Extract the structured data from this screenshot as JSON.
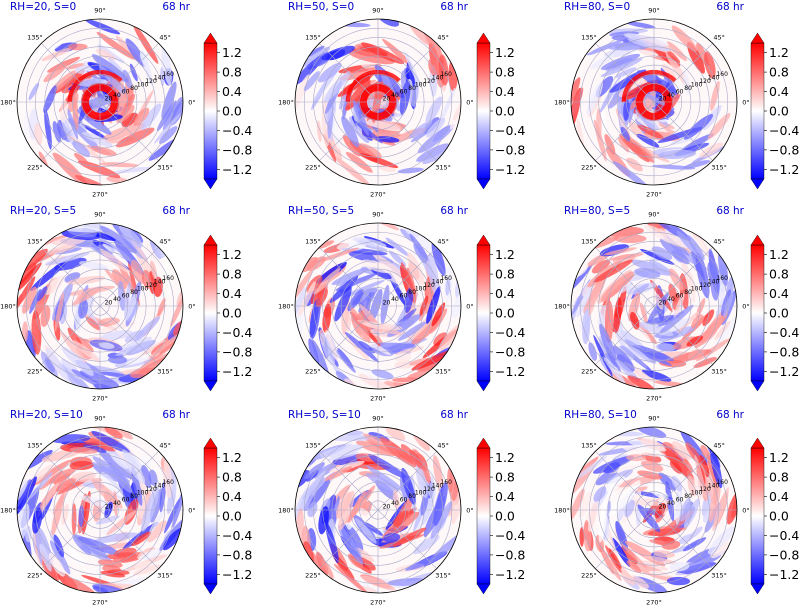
{
  "colors": {
    "negative": "#0000ff",
    "zero": "#ffffff",
    "positive": "#ff0000",
    "title": "#0000cc",
    "grid": "#a9a9c9",
    "frame": "#000000"
  },
  "colormap": "bwr",
  "colorbar_ticks": [
    "1.2",
    "0.8",
    "0.4",
    "0.0",
    "−0.4",
    "−0.8",
    "−1.2"
  ],
  "angle_labels": [
    "90°",
    "45°",
    "0°",
    "315°",
    "270°",
    "225°",
    "180°",
    "135°"
  ],
  "radial_tick_labels": [
    "20",
    "40",
    "60",
    "80",
    "100",
    "120",
    "140",
    "160"
  ],
  "chart_data": [
    {
      "type": "heatmap",
      "projection": "polar",
      "title_left": "RH=20, S=0",
      "title_right": "68 hr",
      "theta_ticks_deg": [
        0,
        45,
        90,
        135,
        180,
        225,
        270,
        315
      ],
      "r_ticks": [
        20,
        40,
        60,
        80,
        100,
        120,
        140,
        160
      ],
      "rlim": [
        0,
        180
      ],
      "clim": [
        -1.4,
        1.4
      ],
      "colorbar_extend": "both",
      "pattern": "compact spiral",
      "grid": true
    },
    {
      "type": "heatmap",
      "projection": "polar",
      "title_left": "RH=50, S=0",
      "title_right": "68 hr",
      "theta_ticks_deg": [
        0,
        45,
        90,
        135,
        180,
        225,
        270,
        315
      ],
      "r_ticks": [
        20,
        40,
        60,
        80,
        100,
        120,
        140,
        160
      ],
      "rlim": [
        0,
        180
      ],
      "clim": [
        -1.4,
        1.4
      ],
      "colorbar_extend": "both",
      "pattern": "compact spiral",
      "grid": true
    },
    {
      "type": "heatmap",
      "projection": "polar",
      "title_left": "RH=80, S=0",
      "title_right": "68 hr",
      "theta_ticks_deg": [
        0,
        45,
        90,
        135,
        180,
        225,
        270,
        315
      ],
      "r_ticks": [
        20,
        40,
        60,
        80,
        100,
        120,
        140,
        160
      ],
      "rlim": [
        0,
        180
      ],
      "clim": [
        -1.4,
        1.4
      ],
      "colorbar_extend": "both",
      "pattern": "compact spiral",
      "grid": true
    },
    {
      "type": "heatmap",
      "projection": "polar",
      "title_left": "RH=20, S=5",
      "title_right": "68 hr",
      "theta_ticks_deg": [
        0,
        45,
        90,
        135,
        180,
        225,
        270,
        315
      ],
      "r_ticks": [
        20,
        40,
        60,
        80,
        100,
        120,
        140,
        160
      ],
      "rlim": [
        0,
        180
      ],
      "clim": [
        -1.4,
        1.4
      ],
      "colorbar_extend": "both",
      "pattern": "spiral bands",
      "grid": true
    },
    {
      "type": "heatmap",
      "projection": "polar",
      "title_left": "RH=50, S=5",
      "title_right": "68 hr",
      "theta_ticks_deg": [
        0,
        45,
        90,
        135,
        180,
        225,
        270,
        315
      ],
      "r_ticks": [
        20,
        40,
        60,
        80,
        100,
        120,
        140,
        160
      ],
      "rlim": [
        0,
        180
      ],
      "clim": [
        -1.4,
        1.4
      ],
      "colorbar_extend": "both",
      "pattern": "spiral bands",
      "grid": true
    },
    {
      "type": "heatmap",
      "projection": "polar",
      "title_left": "RH=80, S=5",
      "title_right": "68 hr",
      "theta_ticks_deg": [
        0,
        45,
        90,
        135,
        180,
        225,
        270,
        315
      ],
      "r_ticks": [
        20,
        40,
        60,
        80,
        100,
        120,
        140,
        160
      ],
      "rlim": [
        0,
        180
      ],
      "clim": [
        -1.4,
        1.4
      ],
      "colorbar_extend": "both",
      "pattern": "spiral bands",
      "grid": true
    },
    {
      "type": "heatmap",
      "projection": "polar",
      "title_left": "RH=20, S=10",
      "title_right": "68 hr",
      "theta_ticks_deg": [
        0,
        45,
        90,
        135,
        180,
        225,
        270,
        315
      ],
      "r_ticks": [
        20,
        40,
        60,
        80,
        100,
        120,
        140,
        160
      ],
      "rlim": [
        0,
        180
      ],
      "clim": [
        -1.4,
        1.4
      ],
      "colorbar_extend": "both",
      "pattern": "scattered asymmetric",
      "grid": true
    },
    {
      "type": "heatmap",
      "projection": "polar",
      "title_left": "RH=50, S=10",
      "title_right": "68 hr",
      "theta_ticks_deg": [
        0,
        45,
        90,
        135,
        180,
        225,
        270,
        315
      ],
      "r_ticks": [
        20,
        40,
        60,
        80,
        100,
        120,
        140,
        160
      ],
      "rlim": [
        0,
        180
      ],
      "clim": [
        -1.4,
        1.4
      ],
      "colorbar_extend": "both",
      "pattern": "scattered asymmetric",
      "grid": true
    },
    {
      "type": "heatmap",
      "projection": "polar",
      "title_left": "RH=80, S=10",
      "title_right": "68 hr",
      "theta_ticks_deg": [
        0,
        45,
        90,
        135,
        180,
        225,
        270,
        315
      ],
      "r_ticks": [
        20,
        40,
        60,
        80,
        100,
        120,
        140,
        160
      ],
      "rlim": [
        0,
        180
      ],
      "clim": [
        -1.4,
        1.4
      ],
      "colorbar_extend": "both",
      "pattern": "scattered asymmetric",
      "grid": true
    }
  ]
}
